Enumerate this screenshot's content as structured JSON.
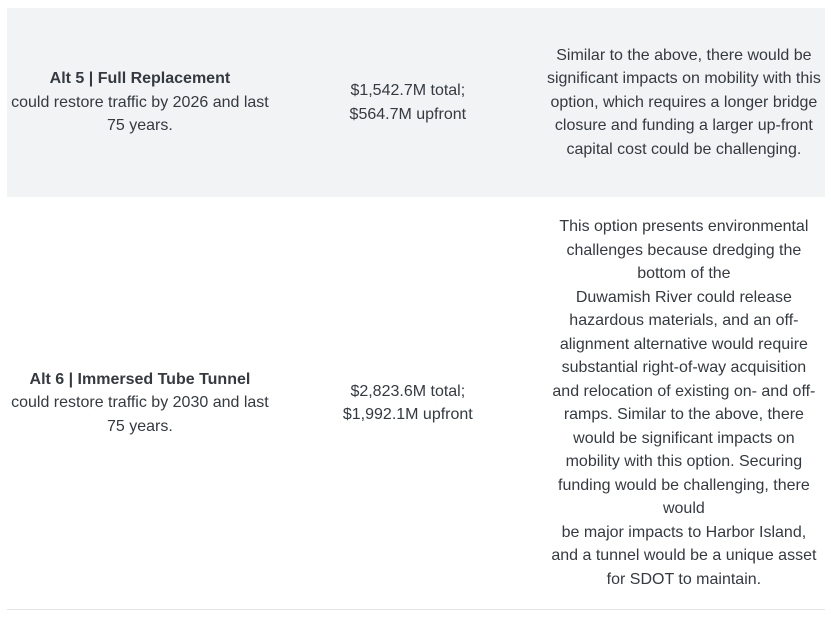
{
  "colors": {
    "stripe_background": "#f1f3f5",
    "text": "#343a40",
    "table_border": "#e3e5e7",
    "page_background": "#ffffff"
  },
  "table": {
    "rows": [
      {
        "name": "Alt 5 | Full Replacement",
        "description": "could restore traffic by 2026 and last 75 years.",
        "cost": "$1,542.7M total;\n$564.7M upfront",
        "commentary": "Similar to the above, there would be significant impacts on mobility with this option, which requires a longer bridge closure and funding a larger up-front capital cost could be challenging."
      },
      {
        "name": "Alt 6 | Immersed Tube Tunnel",
        "description": "could restore traffic by 2030 and last 75 years.",
        "cost": "$2,823.6M total;\n$1,992.1M upfront",
        "commentary": "This option presents environmental challenges because dredging the bottom of the\nDuwamish River could release hazardous materials, and an off-alignment alternative would require substantial right-of-way acquisition and relocation of existing on- and off-ramps. Similar to the above, there would be significant impacts on mobility with this option. Securing funding would be challenging, there would\nbe major impacts to Harbor Island, and a tunnel would be a unique asset for SDOT to maintain."
      }
    ]
  }
}
